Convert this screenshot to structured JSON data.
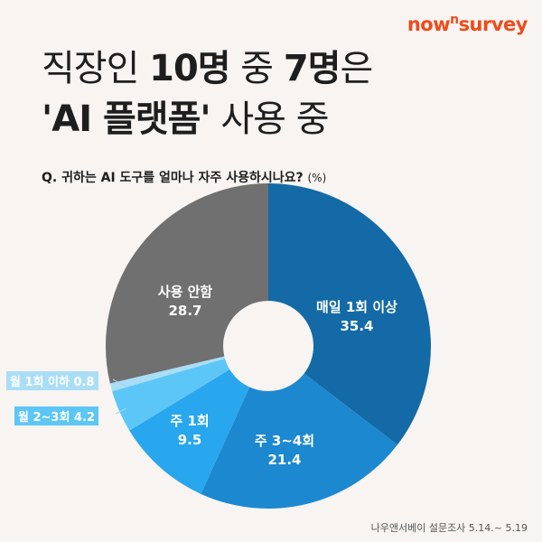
{
  "logo": {
    "text_a": "now",
    "text_sup": "n",
    "text_b": "survey"
  },
  "title": {
    "l1a": "직장인 ",
    "l1b": "10명",
    "l1c": " 중 ",
    "l1d": "7명",
    "l1e": "은",
    "l2a": "'AI 플랫폼'",
    "l2b": " 사용 중"
  },
  "question": {
    "a": "Q. 귀하는 ",
    "b": "AI",
    "c": " 도구를 얼마나 자주 ",
    "d": "사용",
    "e": "하시나요? ",
    "unit": "(%)"
  },
  "footer": "나우앤서베이 설문조사 5.14.~ 5.19",
  "chart_data": {
    "type": "pie",
    "donut": true,
    "categories": [
      "매일 1회 이상",
      "주 3~4회",
      "주 1회",
      "월 2~3회",
      "월 1회 이하",
      "사용 안함"
    ],
    "values": [
      35.4,
      21.4,
      9.5,
      4.2,
      0.8,
      28.7
    ],
    "colors": [
      "#136aa6",
      "#1c88d0",
      "#28a6ee",
      "#5cc6f7",
      "#a9def6",
      "#707070"
    ],
    "labels": [
      "35.4",
      "21.4",
      "9.5",
      "4.2",
      "0.8",
      "28.7"
    ]
  }
}
